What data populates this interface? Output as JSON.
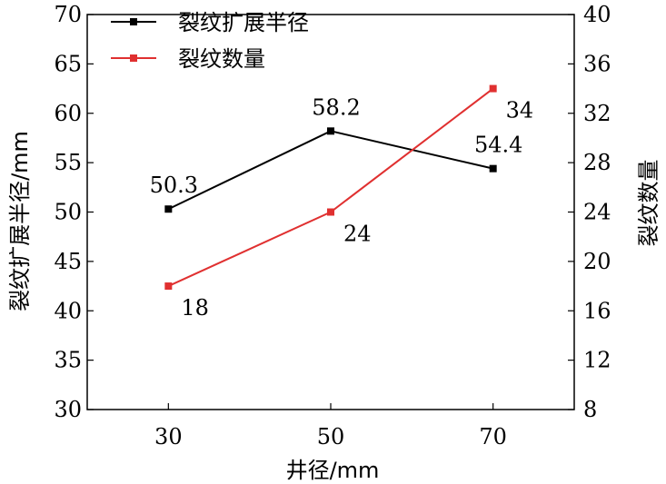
{
  "chart_data": {
    "type": "line",
    "x": [
      30,
      50,
      70
    ],
    "xlabel": "井径/mm",
    "xlim": [
      20,
      80
    ],
    "x_ticks": [
      "30",
      "50",
      "70"
    ],
    "left_axis": {
      "label": "裂纹扩展半径/mm",
      "ylim": [
        30,
        70
      ],
      "ticks": [
        "30",
        "35",
        "40",
        "45",
        "50",
        "55",
        "60",
        "65",
        "70"
      ]
    },
    "right_axis": {
      "label": "裂纹数量",
      "ylim": [
        8,
        40
      ],
      "ticks": [
        "8",
        "12",
        "16",
        "20",
        "24",
        "28",
        "32",
        "36",
        "40"
      ]
    },
    "series": [
      {
        "name": "裂纹扩展半径",
        "axis": "left",
        "color": "#000000",
        "values": [
          50.3,
          58.2,
          54.4
        ],
        "labels": [
          "50.3",
          "58.2",
          "54.4"
        ],
        "label_position": "above"
      },
      {
        "name": "裂纹数量",
        "axis": "right",
        "color": "#e03030",
        "values": [
          18,
          24,
          34
        ],
        "labels": [
          "18",
          "24",
          "34"
        ],
        "label_position": "below-right"
      }
    ],
    "legend": {
      "position": "top-left"
    },
    "grid": false
  }
}
